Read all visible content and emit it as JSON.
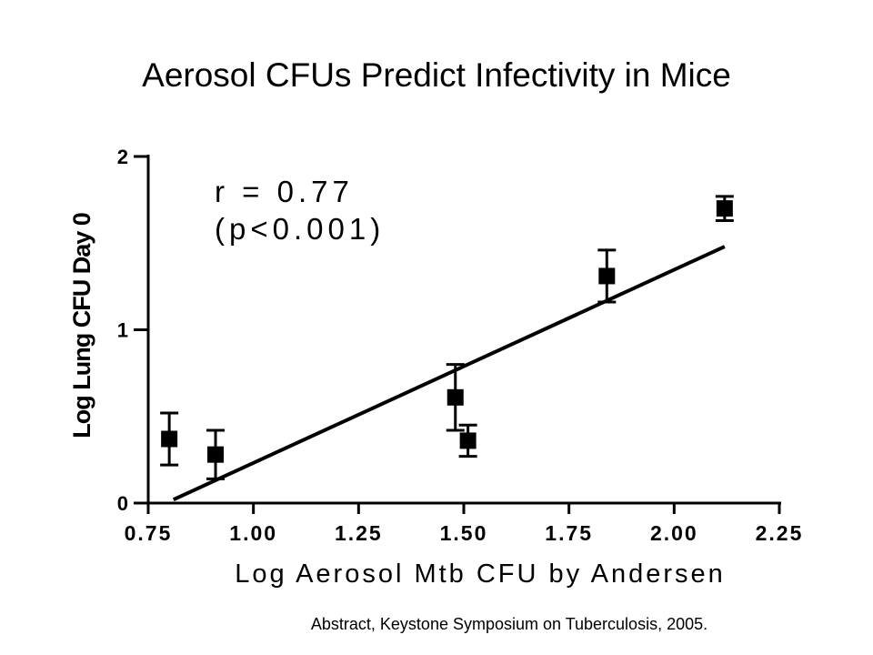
{
  "slide": {
    "title": "Aerosol CFUs Predict Infectivity in Mice",
    "caption": "Abstract, Keystone Symposium on Tuberculosis, 2005."
  },
  "chart_data": {
    "type": "scatter",
    "title": "",
    "xlabel": "Log Aerosol Mtb CFU by Andersen",
    "ylabel": "Log Lung CFU Day 0",
    "xlim": [
      0.75,
      2.25
    ],
    "ylim": [
      0,
      2
    ],
    "x_ticks": [
      "0.75",
      "1.00",
      "1.25",
      "1.50",
      "1.75",
      "2.00",
      "2.25"
    ],
    "y_ticks": [
      "0",
      "1",
      "2"
    ],
    "grid": false,
    "annotation": [
      "r = 0.77",
      "(p<0.001)"
    ],
    "points": [
      {
        "x": 0.8,
        "y": 0.37,
        "err": 0.15
      },
      {
        "x": 0.91,
        "y": 0.28,
        "err": 0.14
      },
      {
        "x": 1.48,
        "y": 0.61,
        "err": 0.19
      },
      {
        "x": 1.51,
        "y": 0.36,
        "err": 0.09
      },
      {
        "x": 1.84,
        "y": 1.31,
        "err": 0.15
      },
      {
        "x": 2.12,
        "y": 1.7,
        "err": 0.07
      }
    ],
    "fit_line": {
      "x": [
        0.81,
        2.12
      ],
      "y": [
        0.02,
        1.48
      ]
    },
    "colors": {
      "marks": "#000000",
      "background": "#ffffff"
    }
  }
}
